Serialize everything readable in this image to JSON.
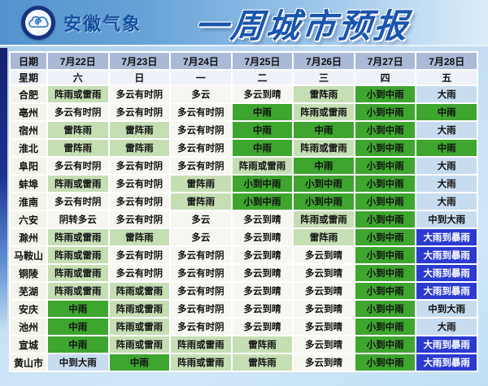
{
  "header": {
    "brand": "安徽气象",
    "title": "一周城市预报",
    "logo": "anhui-meteorology-bureau-seal"
  },
  "colors": {
    "banner_left": "#5492cd",
    "banner_right": "#dcedf9",
    "title_blue": "#1a55af",
    "header_row_bg": "#aab9d6",
    "week_row_bg": "#eef2f8",
    "city_col_bg": "#f5f4ea",
    "frame_navy": "#151f6e"
  },
  "chart_data": {
    "type": "table",
    "title": "一周城市预报",
    "date_label": "日期",
    "dates": [
      "7月22日",
      "7月23日",
      "7月24日",
      "7月25日",
      "7月26日",
      "7月27日",
      "7月28日"
    ],
    "week_label": "星期",
    "weekdays": [
      "六",
      "日",
      "一",
      "二",
      "三",
      "四",
      "五"
    ],
    "styles": {
      "w": {
        "bg": "#f7f6f0",
        "fg": "#101010",
        "meaning": "cloudy"
      },
      "lg": {
        "bg": "#c5deb4",
        "fg": "#101010",
        "meaning": "showers-thundershowers"
      },
      "g": {
        "bg": "#3ea52f",
        "fg": "#101010",
        "meaning": "moderate-rain"
      },
      "lb": {
        "bg": "#c8dcf0",
        "fg": "#101010",
        "meaning": "heavy-rain"
      },
      "db": {
        "bg": "#2b3bd0",
        "fg": "#ffffff",
        "meaning": "heavy-to-torrential-rain"
      }
    },
    "rows": [
      {
        "city": "合肥",
        "cells": [
          {
            "t": "阵雨或雷雨",
            "s": "lg"
          },
          {
            "t": "多云有时阴",
            "s": "w"
          },
          {
            "t": "多云",
            "s": "w"
          },
          {
            "t": "多云到晴",
            "s": "w"
          },
          {
            "t": "雷阵雨",
            "s": "lg"
          },
          {
            "t": "小到中雨",
            "s": "g"
          },
          {
            "t": "大雨",
            "s": "lb"
          }
        ]
      },
      {
        "city": "亳州",
        "cells": [
          {
            "t": "多云有时阴",
            "s": "w"
          },
          {
            "t": "多云有时阴",
            "s": "w"
          },
          {
            "t": "多云有时阴",
            "s": "w"
          },
          {
            "t": "中雨",
            "s": "g"
          },
          {
            "t": "阵雨或雷雨",
            "s": "lg"
          },
          {
            "t": "小到中雨",
            "s": "g"
          },
          {
            "t": "中雨",
            "s": "g"
          }
        ]
      },
      {
        "city": "宿州",
        "cells": [
          {
            "t": "雷阵雨",
            "s": "lg"
          },
          {
            "t": "雷阵雨",
            "s": "lg"
          },
          {
            "t": "多云有时阴",
            "s": "w"
          },
          {
            "t": "中雨",
            "s": "g"
          },
          {
            "t": "中雨",
            "s": "g"
          },
          {
            "t": "小到中雨",
            "s": "g"
          },
          {
            "t": "大雨",
            "s": "lb"
          }
        ]
      },
      {
        "city": "淮北",
        "cells": [
          {
            "t": "雷阵雨",
            "s": "lg"
          },
          {
            "t": "雷阵雨",
            "s": "lg"
          },
          {
            "t": "多云有时阴",
            "s": "w"
          },
          {
            "t": "中雨",
            "s": "g"
          },
          {
            "t": "阵雨或雷雨",
            "s": "lg"
          },
          {
            "t": "小到中雨",
            "s": "g"
          },
          {
            "t": "中雨",
            "s": "g"
          }
        ]
      },
      {
        "city": "阜阳",
        "cells": [
          {
            "t": "多云有时阴",
            "s": "w"
          },
          {
            "t": "多云有时阴",
            "s": "w"
          },
          {
            "t": "多云有时阴",
            "s": "w"
          },
          {
            "t": "阵雨或雷雨",
            "s": "lg"
          },
          {
            "t": "中雨",
            "s": "g"
          },
          {
            "t": "小到中雨",
            "s": "g"
          },
          {
            "t": "大雨",
            "s": "lb"
          }
        ]
      },
      {
        "city": "蚌埠",
        "cells": [
          {
            "t": "阵雨或雷雨",
            "s": "lg"
          },
          {
            "t": "多云有时阴",
            "s": "w"
          },
          {
            "t": "雷阵雨",
            "s": "lg"
          },
          {
            "t": "小到中雨",
            "s": "g"
          },
          {
            "t": "小到中雨",
            "s": "g"
          },
          {
            "t": "小到中雨",
            "s": "g"
          },
          {
            "t": "大雨",
            "s": "lb"
          }
        ]
      },
      {
        "city": "淮南",
        "cells": [
          {
            "t": "多云有时阴",
            "s": "w"
          },
          {
            "t": "多云有时阴",
            "s": "w"
          },
          {
            "t": "雷阵雨",
            "s": "lg"
          },
          {
            "t": "小到中雨",
            "s": "g"
          },
          {
            "t": "小到中雨",
            "s": "g"
          },
          {
            "t": "小到中雨",
            "s": "g"
          },
          {
            "t": "大雨",
            "s": "lb"
          }
        ]
      },
      {
        "city": "六安",
        "cells": [
          {
            "t": "阴转多云",
            "s": "w"
          },
          {
            "t": "多云有时阴",
            "s": "w"
          },
          {
            "t": "多云",
            "s": "w"
          },
          {
            "t": "多云到晴",
            "s": "w"
          },
          {
            "t": "阵雨或雷雨",
            "s": "lg"
          },
          {
            "t": "小到中雨",
            "s": "g"
          },
          {
            "t": "中到大雨",
            "s": "lb"
          }
        ]
      },
      {
        "city": "滁州",
        "cells": [
          {
            "t": "阵雨或雷雨",
            "s": "lg"
          },
          {
            "t": "雷阵雨",
            "s": "lg"
          },
          {
            "t": "多云",
            "s": "w"
          },
          {
            "t": "多云到晴",
            "s": "w"
          },
          {
            "t": "雷阵雨",
            "s": "lg"
          },
          {
            "t": "小到中雨",
            "s": "g"
          },
          {
            "t": "大雨到暴雨",
            "s": "db"
          }
        ]
      },
      {
        "city": "马鞍山",
        "cells": [
          {
            "t": "阵雨或雷雨",
            "s": "lg"
          },
          {
            "t": "多云有时阴",
            "s": "w"
          },
          {
            "t": "多云有时阴",
            "s": "w"
          },
          {
            "t": "多云到晴",
            "s": "w"
          },
          {
            "t": "多云到晴",
            "s": "w"
          },
          {
            "t": "小到中雨",
            "s": "g"
          },
          {
            "t": "大雨到暴雨",
            "s": "db"
          }
        ]
      },
      {
        "city": "铜陵",
        "cells": [
          {
            "t": "阵雨或雷雨",
            "s": "lg"
          },
          {
            "t": "多云有时阴",
            "s": "w"
          },
          {
            "t": "多云有时阴",
            "s": "w"
          },
          {
            "t": "多云到晴",
            "s": "w"
          },
          {
            "t": "多云到晴",
            "s": "w"
          },
          {
            "t": "小到中雨",
            "s": "g"
          },
          {
            "t": "大雨到暴雨",
            "s": "db"
          }
        ]
      },
      {
        "city": "芜湖",
        "cells": [
          {
            "t": "阵雨或雷雨",
            "s": "lg"
          },
          {
            "t": "阵雨或雷雨",
            "s": "lg"
          },
          {
            "t": "多云有时阴",
            "s": "w"
          },
          {
            "t": "多云到晴",
            "s": "w"
          },
          {
            "t": "多云到晴",
            "s": "w"
          },
          {
            "t": "小到中雨",
            "s": "g"
          },
          {
            "t": "大雨到暴雨",
            "s": "db"
          }
        ]
      },
      {
        "city": "安庆",
        "cells": [
          {
            "t": "中雨",
            "s": "g"
          },
          {
            "t": "阵雨或雷雨",
            "s": "lg"
          },
          {
            "t": "多云有时阴",
            "s": "w"
          },
          {
            "t": "多云到晴",
            "s": "w"
          },
          {
            "t": "多云到晴",
            "s": "w"
          },
          {
            "t": "小到中雨",
            "s": "g"
          },
          {
            "t": "中到大雨",
            "s": "lb"
          }
        ]
      },
      {
        "city": "池州",
        "cells": [
          {
            "t": "中雨",
            "s": "g"
          },
          {
            "t": "阵雨或雷雨",
            "s": "lg"
          },
          {
            "t": "多云有时阴",
            "s": "w"
          },
          {
            "t": "多云到晴",
            "s": "w"
          },
          {
            "t": "多云到晴",
            "s": "w"
          },
          {
            "t": "小到中雨",
            "s": "g"
          },
          {
            "t": "大雨",
            "s": "lb"
          }
        ]
      },
      {
        "city": "宣城",
        "cells": [
          {
            "t": "中雨",
            "s": "g"
          },
          {
            "t": "阵雨或雷雨",
            "s": "lg"
          },
          {
            "t": "阵雨或雷雨",
            "s": "lg"
          },
          {
            "t": "雷阵雨",
            "s": "lg"
          },
          {
            "t": "多云到晴",
            "s": "w"
          },
          {
            "t": "小到中雨",
            "s": "g"
          },
          {
            "t": "大雨到暴雨",
            "s": "db"
          }
        ]
      },
      {
        "city": "黄山市",
        "cells": [
          {
            "t": "中到大雨",
            "s": "lb"
          },
          {
            "t": "中雨",
            "s": "g"
          },
          {
            "t": "阵雨或雷雨",
            "s": "lg"
          },
          {
            "t": "雷阵雨",
            "s": "lg"
          },
          {
            "t": "多云到晴",
            "s": "w"
          },
          {
            "t": "小到中雨",
            "s": "g"
          },
          {
            "t": "大雨到暴雨",
            "s": "db"
          }
        ]
      }
    ]
  }
}
